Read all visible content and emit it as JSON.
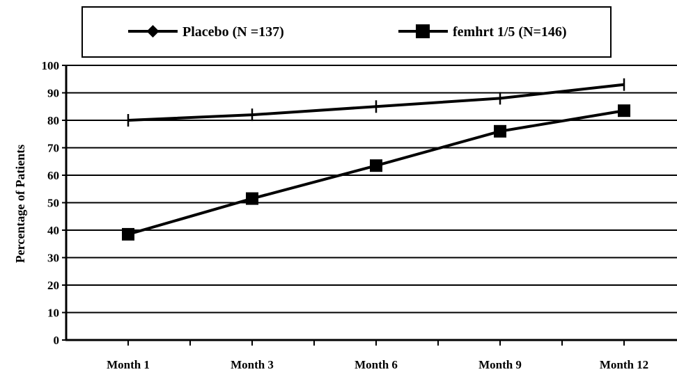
{
  "chart_data": {
    "type": "line",
    "title": "",
    "xlabel": "",
    "ylabel": "Percentage of Patients",
    "categories": [
      "Month 1",
      "Month 3",
      "Month 6",
      "Month 9",
      "Month 12"
    ],
    "ylim": [
      0,
      100
    ],
    "y_ticks": [
      0,
      10,
      20,
      30,
      40,
      50,
      60,
      70,
      80,
      90,
      100
    ],
    "grid": "horizontal",
    "legend_position": "top",
    "series": [
      {
        "name": "Placebo (N =137)",
        "marker": "diamond",
        "values": [
          80,
          82,
          85,
          88,
          93
        ],
        "color": "#000000"
      },
      {
        "name": "femhrt 1/5 (N=146)",
        "marker": "square",
        "values": [
          38.5,
          51.5,
          63.5,
          76,
          83.5
        ],
        "color": "#000000"
      }
    ]
  }
}
